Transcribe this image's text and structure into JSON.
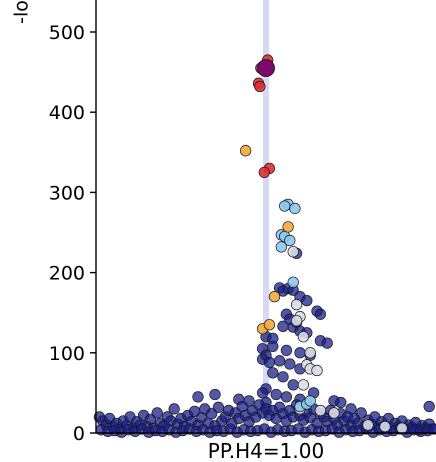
{
  "chart_data": {
    "type": "scatter",
    "title": "",
    "ylabel": "-lo",
    "xlabel": "PP.H4=1.00",
    "ylim": [
      0,
      500
    ],
    "yticks": [
      0,
      100,
      200,
      300,
      400,
      500
    ],
    "ytick_labels": [
      "0",
      "100",
      "200",
      "300",
      "400",
      "500"
    ],
    "grid": false,
    "highlight_band": {
      "x": 0.5,
      "color": "#c8ccf2"
    },
    "lead_variant": {
      "x": 0.5,
      "y": 455,
      "color": "#7a0a6e"
    },
    "colors": {
      "lead": "#7a0a6e",
      "r2_high": "#d93030",
      "r2_mid_high": "#f4a93a",
      "r2_mid": "#8cc8ee",
      "r2_low": "#d9dde6",
      "r2_very_low": "#1a1f8a"
    },
    "series": [
      {
        "color": "r2_high",
        "points": [
          [
            0.505,
            465
          ],
          [
            0.485,
            455
          ],
          [
            0.478,
            436
          ],
          [
            0.482,
            432
          ],
          [
            0.51,
            330
          ],
          [
            0.495,
            325
          ]
        ]
      },
      {
        "color": "r2_mid_high",
        "points": [
          [
            0.44,
            352
          ],
          [
            0.565,
            257
          ],
          [
            0.525,
            170
          ],
          [
            0.49,
            130
          ],
          [
            0.51,
            135
          ]
        ]
      },
      {
        "color": "r2_mid",
        "points": [
          [
            0.565,
            285
          ],
          [
            0.555,
            283
          ],
          [
            0.585,
            280
          ],
          [
            0.545,
            247
          ],
          [
            0.555,
            245
          ],
          [
            0.57,
            240
          ],
          [
            0.545,
            232
          ],
          [
            0.58,
            188
          ],
          [
            0.6,
            33
          ],
          [
            0.62,
            36
          ],
          [
            0.63,
            40
          ]
        ]
      },
      {
        "color": "r2_low",
        "points": [
          [
            0.58,
            226
          ],
          [
            0.59,
            160
          ],
          [
            0.6,
            145
          ],
          [
            0.59,
            140
          ],
          [
            0.61,
            120
          ],
          [
            0.63,
            100
          ],
          [
            0.62,
            85
          ],
          [
            0.63,
            80
          ],
          [
            0.65,
            78
          ],
          [
            0.61,
            60
          ],
          [
            0.6,
            30
          ],
          [
            0.66,
            28
          ],
          [
            0.7,
            25
          ],
          [
            0.8,
            10
          ],
          [
            0.85,
            8
          ],
          [
            0.9,
            6
          ]
        ]
      },
      {
        "color": "r2_very_low",
        "points": [
          [
            0.59,
            224
          ],
          [
            0.54,
            181
          ],
          [
            0.55,
            177
          ],
          [
            0.565,
            180
          ],
          [
            0.58,
            178
          ],
          [
            0.6,
            170
          ],
          [
            0.62,
            165
          ],
          [
            0.65,
            152
          ],
          [
            0.66,
            148
          ],
          [
            0.56,
            148
          ],
          [
            0.57,
            142
          ],
          [
            0.59,
            138
          ],
          [
            0.55,
            133
          ],
          [
            0.58,
            132
          ],
          [
            0.6,
            127
          ],
          [
            0.62,
            125
          ],
          [
            0.5,
            120
          ],
          [
            0.52,
            118
          ],
          [
            0.66,
            115
          ],
          [
            0.68,
            112
          ],
          [
            0.49,
            105
          ],
          [
            0.52,
            108
          ],
          [
            0.56,
            103
          ],
          [
            0.6,
            100
          ],
          [
            0.63,
            97
          ],
          [
            0.5,
            97
          ],
          [
            0.49,
            92
          ],
          [
            0.54,
            90
          ],
          [
            0.51,
            88
          ],
          [
            0.57,
            86
          ],
          [
            0.6,
            80
          ],
          [
            0.52,
            75
          ],
          [
            0.55,
            70
          ],
          [
            0.58,
            60
          ],
          [
            0.5,
            55
          ],
          [
            0.49,
            50
          ],
          [
            0.53,
            48
          ],
          [
            0.56,
            45
          ],
          [
            0.6,
            42
          ],
          [
            0.64,
            50
          ],
          [
            0.7,
            40
          ],
          [
            0.72,
            38
          ],
          [
            0.75,
            30
          ],
          [
            0.3,
            45
          ],
          [
            0.35,
            48
          ],
          [
            0.42,
            42
          ],
          [
            0.45,
            40
          ],
          [
            0.5,
            38
          ],
          [
            0.98,
            33
          ],
          [
            0.01,
            20
          ],
          [
            0.02,
            15
          ],
          [
            0.03,
            10
          ],
          [
            0.04,
            18
          ],
          [
            0.05,
            8
          ],
          [
            0.06,
            12
          ],
          [
            0.07,
            5
          ],
          [
            0.08,
            15
          ],
          [
            0.09,
            9
          ],
          [
            0.1,
            20
          ],
          [
            0.11,
            6
          ],
          [
            0.12,
            14
          ],
          [
            0.13,
            10
          ],
          [
            0.14,
            22
          ],
          [
            0.15,
            8
          ],
          [
            0.16,
            17
          ],
          [
            0.17,
            6
          ],
          [
            0.18,
            25
          ],
          [
            0.19,
            12
          ],
          [
            0.2,
            9
          ],
          [
            0.21,
            20
          ],
          [
            0.22,
            15
          ],
          [
            0.23,
            30
          ],
          [
            0.24,
            11
          ],
          [
            0.25,
            18
          ],
          [
            0.26,
            8
          ],
          [
            0.27,
            22
          ],
          [
            0.28,
            14
          ],
          [
            0.29,
            27
          ],
          [
            0.3,
            10
          ],
          [
            0.31,
            19
          ],
          [
            0.32,
            30
          ],
          [
            0.33,
            12
          ],
          [
            0.34,
            24
          ],
          [
            0.35,
            9
          ],
          [
            0.36,
            32
          ],
          [
            0.37,
            15
          ],
          [
            0.38,
            20
          ],
          [
            0.39,
            28
          ],
          [
            0.4,
            12
          ],
          [
            0.41,
            25
          ],
          [
            0.42,
            18
          ],
          [
            0.43,
            33
          ],
          [
            0.44,
            22
          ],
          [
            0.45,
            14
          ],
          [
            0.46,
            28
          ],
          [
            0.47,
            20
          ],
          [
            0.48,
            35
          ],
          [
            0.49,
            25
          ],
          [
            0.5,
            30
          ],
          [
            0.51,
            22
          ],
          [
            0.52,
            28
          ],
          [
            0.53,
            18
          ],
          [
            0.54,
            32
          ],
          [
            0.55,
            24
          ],
          [
            0.56,
            15
          ],
          [
            0.57,
            28
          ],
          [
            0.58,
            20
          ],
          [
            0.59,
            35
          ],
          [
            0.6,
            22
          ],
          [
            0.61,
            16
          ],
          [
            0.62,
            26
          ],
          [
            0.63,
            19
          ],
          [
            0.64,
            30
          ],
          [
            0.65,
            12
          ],
          [
            0.66,
            24
          ],
          [
            0.67,
            20
          ],
          [
            0.68,
            14
          ],
          [
            0.69,
            28
          ],
          [
            0.7,
            18
          ],
          [
            0.71,
            10
          ],
          [
            0.72,
            24
          ],
          [
            0.73,
            15
          ],
          [
            0.74,
            20
          ],
          [
            0.75,
            9
          ],
          [
            0.76,
            18
          ],
          [
            0.77,
            12
          ],
          [
            0.78,
            25
          ],
          [
            0.79,
            8
          ],
          [
            0.8,
            16
          ],
          [
            0.81,
            11
          ],
          [
            0.82,
            20
          ],
          [
            0.83,
            7
          ],
          [
            0.84,
            14
          ],
          [
            0.85,
            9
          ],
          [
            0.86,
            18
          ],
          [
            0.87,
            6
          ],
          [
            0.88,
            12
          ],
          [
            0.89,
            8
          ],
          [
            0.9,
            15
          ],
          [
            0.91,
            5
          ],
          [
            0.92,
            10
          ],
          [
            0.93,
            7
          ],
          [
            0.94,
            13
          ],
          [
            0.95,
            4
          ],
          [
            0.96,
            9
          ],
          [
            0.97,
            6
          ],
          [
            0.98,
            11
          ],
          [
            0.99,
            5
          ],
          [
            0.015,
            4
          ],
          [
            0.035,
            2
          ],
          [
            0.055,
            3
          ],
          [
            0.075,
            1
          ],
          [
            0.095,
            4
          ],
          [
            0.115,
            2
          ],
          [
            0.135,
            5
          ],
          [
            0.155,
            1
          ],
          [
            0.175,
            3
          ],
          [
            0.195,
            2
          ],
          [
            0.215,
            4
          ],
          [
            0.235,
            1
          ],
          [
            0.255,
            3
          ],
          [
            0.275,
            5
          ],
          [
            0.295,
            2
          ],
          [
            0.315,
            4
          ],
          [
            0.335,
            1
          ],
          [
            0.355,
            3
          ],
          [
            0.375,
            2
          ],
          [
            0.395,
            5
          ],
          [
            0.415,
            1
          ],
          [
            0.435,
            4
          ],
          [
            0.455,
            2
          ],
          [
            0.475,
            3
          ],
          [
            0.495,
            5
          ],
          [
            0.515,
            1
          ],
          [
            0.535,
            4
          ],
          [
            0.555,
            2
          ],
          [
            0.575,
            3
          ],
          [
            0.595,
            5
          ],
          [
            0.615,
            1
          ],
          [
            0.635,
            4
          ],
          [
            0.655,
            2
          ],
          [
            0.675,
            3
          ],
          [
            0.695,
            5
          ],
          [
            0.715,
            1
          ],
          [
            0.735,
            4
          ],
          [
            0.755,
            2
          ],
          [
            0.775,
            3
          ],
          [
            0.795,
            5
          ],
          [
            0.815,
            1
          ],
          [
            0.835,
            4
          ],
          [
            0.855,
            2
          ],
          [
            0.875,
            3
          ],
          [
            0.895,
            5
          ],
          [
            0.915,
            1
          ],
          [
            0.935,
            4
          ],
          [
            0.955,
            2
          ],
          [
            0.975,
            3
          ],
          [
            0.995,
            5
          ]
        ]
      }
    ]
  }
}
